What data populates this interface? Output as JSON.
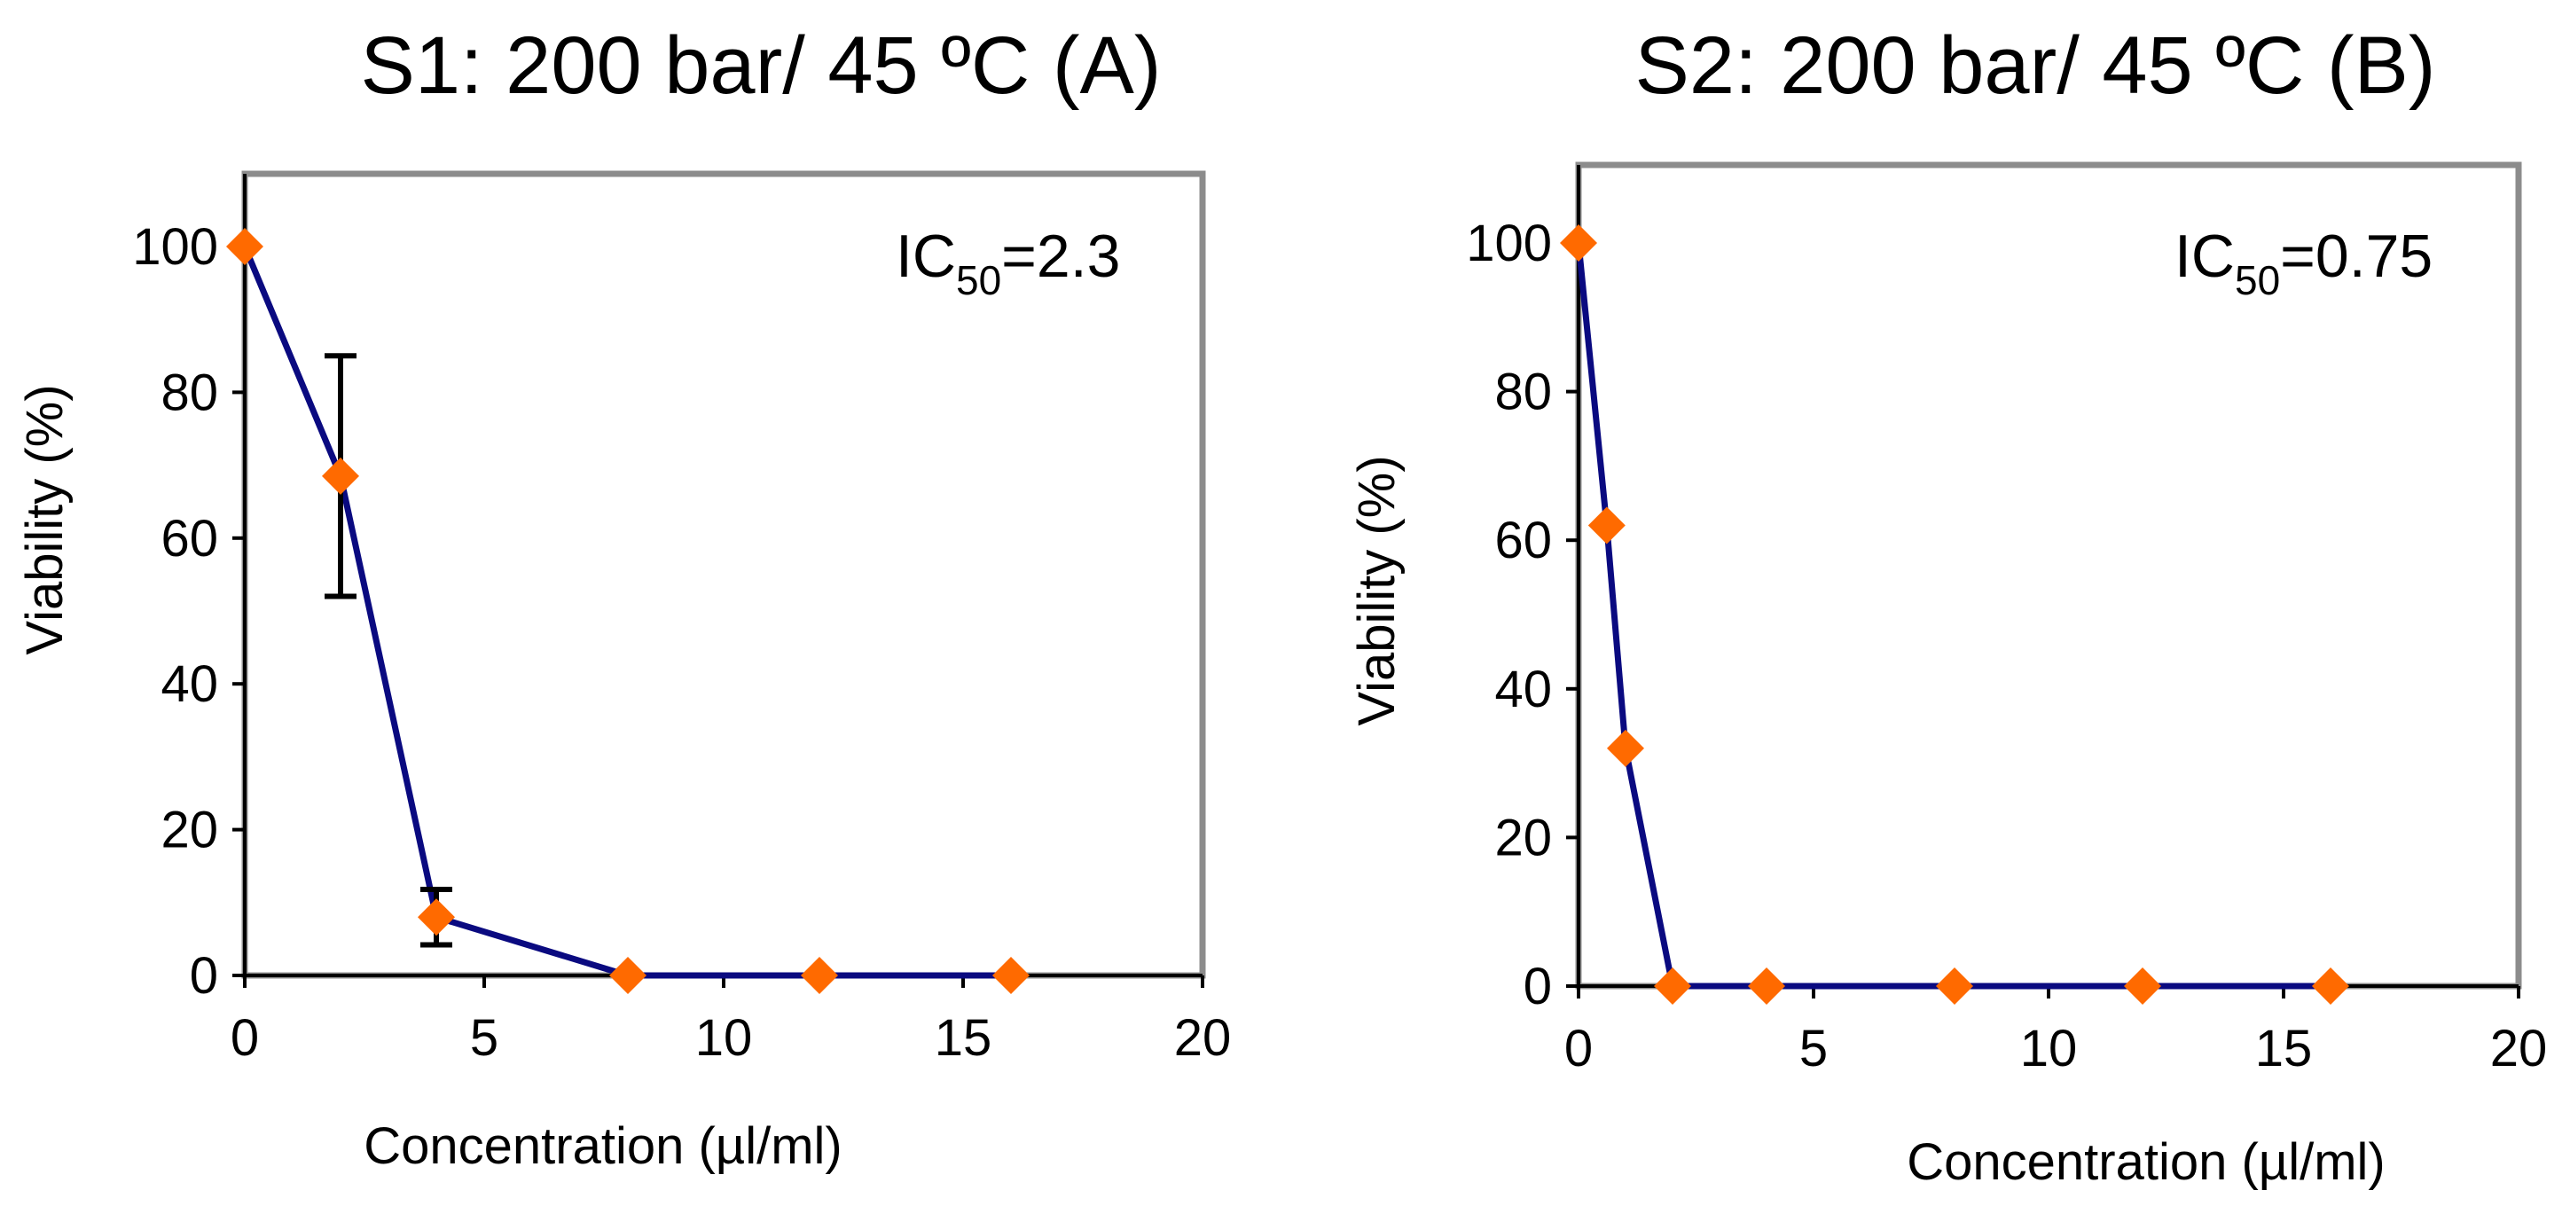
{
  "chart_data": [
    {
      "type": "line",
      "title": "S1: 200 bar/ 45 ºC (A)",
      "xlabel": "Concentration (µl/ml)",
      "ylabel": "Viability (%)",
      "xlim": [
        0,
        20
      ],
      "ylim": [
        0,
        110
      ],
      "x_ticks": [
        "0",
        "5",
        "10",
        "15",
        "20"
      ],
      "y_ticks": [
        "0",
        "20",
        "40",
        "60",
        "80",
        "100"
      ],
      "grid": false,
      "annotation": {
        "prefix": "IC",
        "sub": "50",
        "suffix": "=2.3"
      },
      "series": [
        {
          "x": [
            0,
            2,
            4,
            8,
            12,
            16
          ],
          "y": [
            100,
            68.5,
            8,
            0,
            0,
            0
          ],
          "error": [
            0,
            16.5,
            3.8,
            0,
            0,
            0
          ],
          "line_color": "#0a0a80",
          "marker_color": "#ff6a00",
          "marker": "diamond"
        }
      ]
    },
    {
      "type": "line",
      "title": "S2: 200 bar/ 45 ºC (B)",
      "xlabel": "Concentration (µl/ml)",
      "ylabel": "Viability (%)",
      "xlim": [
        0,
        20
      ],
      "ylim": [
        0,
        110
      ],
      "x_ticks": [
        "0",
        "5",
        "10",
        "15",
        "20"
      ],
      "y_ticks": [
        "0",
        "20",
        "40",
        "60",
        "80",
        "100"
      ],
      "grid": false,
      "annotation": {
        "prefix": "IC",
        "sub": "50",
        "suffix": "=0.75"
      },
      "series": [
        {
          "x": [
            0,
            0.6,
            1,
            2,
            4,
            8,
            12,
            16
          ],
          "y": [
            100,
            62,
            32,
            0,
            0,
            0,
            0,
            0
          ],
          "line_color": "#0a0a80",
          "marker_color": "#ff6a00",
          "marker": "diamond"
        }
      ]
    }
  ]
}
